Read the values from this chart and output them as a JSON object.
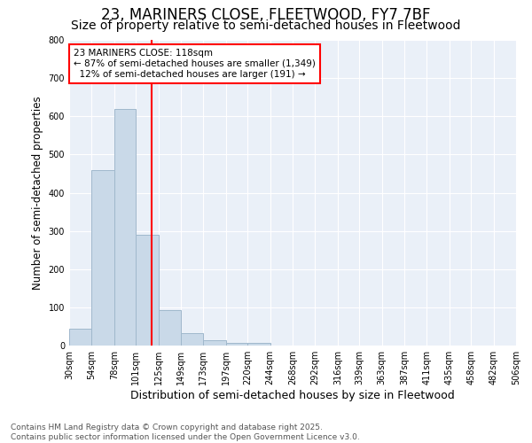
{
  "title1": "23, MARINERS CLOSE, FLEETWOOD, FY7 7BF",
  "title2": "Size of property relative to semi-detached houses in Fleetwood",
  "xlabel": "Distribution of semi-detached houses by size in Fleetwood",
  "ylabel": "Number of semi-detached properties",
  "footnote": "Contains HM Land Registry data © Crown copyright and database right 2025.\nContains public sector information licensed under the Open Government Licence v3.0.",
  "bin_labels": [
    "30sqm",
    "54sqm",
    "78sqm",
    "101sqm",
    "125sqm",
    "149sqm",
    "173sqm",
    "197sqm",
    "220sqm",
    "244sqm",
    "268sqm",
    "292sqm",
    "316sqm",
    "339sqm",
    "363sqm",
    "387sqm",
    "411sqm",
    "435sqm",
    "458sqm",
    "482sqm",
    "506sqm"
  ],
  "bin_edges": [
    30,
    54,
    78,
    101,
    125,
    149,
    173,
    197,
    220,
    244,
    268,
    292,
    316,
    339,
    363,
    387,
    411,
    435,
    458,
    482,
    506
  ],
  "bar_heights": [
    45,
    460,
    618,
    291,
    93,
    33,
    13,
    7,
    7,
    0,
    0,
    0,
    0,
    0,
    0,
    0,
    0,
    0,
    0,
    0
  ],
  "bar_color": "#c9d9e8",
  "bar_edge_color": "#a0b8cc",
  "property_value": 118,
  "vline_color": "red",
  "annotation_text": "23 MARINERS CLOSE: 118sqm\n← 87% of semi-detached houses are smaller (1,349)\n  12% of semi-detached houses are larger (191) →",
  "annotation_box_color": "white",
  "annotation_box_edge": "red",
  "ylim": [
    0,
    800
  ],
  "yticks": [
    0,
    100,
    200,
    300,
    400,
    500,
    600,
    700,
    800
  ],
  "background_color": "#eaf0f8",
  "grid_color": "white",
  "title1_fontsize": 12,
  "title2_fontsize": 10,
  "xlabel_fontsize": 9,
  "ylabel_fontsize": 8.5,
  "footnote_fontsize": 6.5,
  "tick_labelsize": 7
}
